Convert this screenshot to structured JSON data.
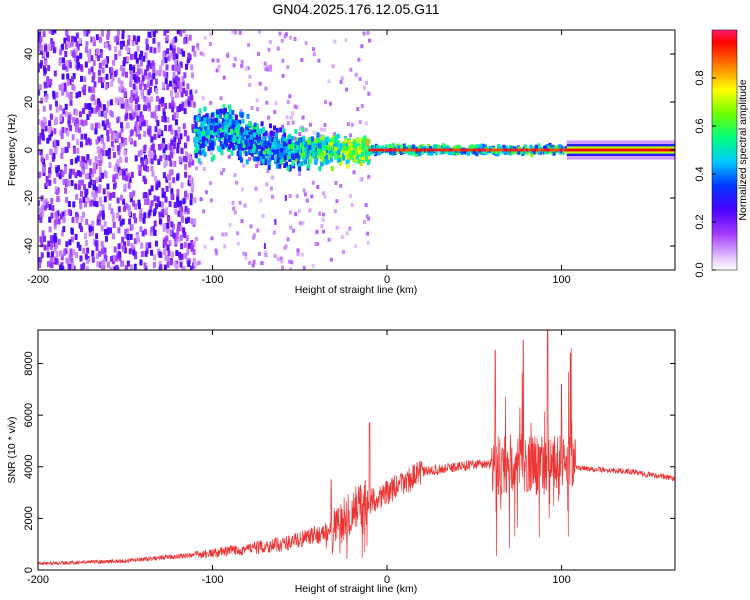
{
  "chart_data": [
    {
      "type": "heatmap",
      "title": "GN04.2025.176.12.05.G11",
      "xlabel": "Height of straight line (km)",
      "ylabel": "Frequency (Hz)",
      "xlim": [
        -200,
        165
      ],
      "ylim": [
        -50,
        50
      ],
      "xticks": [
        -200,
        -100,
        0,
        100
      ],
      "yticks": [
        -40,
        -20,
        0,
        20,
        40
      ],
      "colorbar": {
        "label": "Normalized spectral amplitude",
        "range": [
          0,
          1
        ],
        "ticks": [
          "0.0",
          "0.2",
          "0.4",
          "0.6",
          "0.8"
        ]
      },
      "features": [
        {
          "x_range": [
            -200,
            -110
          ],
          "freq_range": [
            -50,
            50
          ],
          "description": "broad noise"
        },
        {
          "x_range": [
            -110,
            -10
          ],
          "freq_range": [
            -10,
            10
          ],
          "description": "band narrowing toward 0 Hz"
        },
        {
          "x_range": [
            -10,
            105
          ],
          "freq_center": 0,
          "description": "strong narrow band at 0 Hz"
        },
        {
          "x_range": [
            105,
            165
          ],
          "freq_center": 0,
          "description": "very strong flat band"
        }
      ]
    },
    {
      "type": "line",
      "xlabel": "Height of straight line (km)",
      "ylabel": "SNR (10 * v/v)",
      "xlim": [
        -200,
        165
      ],
      "ylim": [
        0,
        9300
      ],
      "xticks": [
        -200,
        -100,
        0,
        100
      ],
      "yticks": [
        0,
        2000,
        4000,
        6000,
        8000
      ],
      "color": "#ee3333",
      "envelope": [
        {
          "x": -200,
          "y": 250
        },
        {
          "x": -150,
          "y": 350
        },
        {
          "x": -100,
          "y": 650
        },
        {
          "x": -60,
          "y": 1000
        },
        {
          "x": -32,
          "y": 1500
        },
        {
          "x": -20,
          "y": 2300
        },
        {
          "x": 0,
          "y": 3000
        },
        {
          "x": 20,
          "y": 3800
        },
        {
          "x": 50,
          "y": 4100
        },
        {
          "x": 100,
          "y": 4100
        },
        {
          "x": 110,
          "y": 3950
        },
        {
          "x": 140,
          "y": 3800
        },
        {
          "x": 165,
          "y": 3550
        }
      ],
      "peaks": [
        {
          "x": -32,
          "y": 3500
        },
        {
          "x": -10,
          "y": 5700
        },
        {
          "x": 62,
          "y": 8500
        },
        {
          "x": 78,
          "y": 8900
        },
        {
          "x": 92,
          "y": 9300
        },
        {
          "x": 100,
          "y": 7200
        },
        {
          "x": 105,
          "y": 8400
        }
      ]
    }
  ]
}
